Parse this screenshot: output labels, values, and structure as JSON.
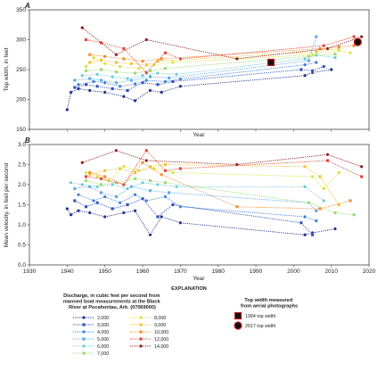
{
  "chart_data": [
    {
      "type": "line",
      "panel": "A",
      "ylabel": "Top width, in feet",
      "xlabel": "Year",
      "xlim": [
        1930,
        2020
      ],
      "ylim": [
        150,
        350
      ],
      "yticks": [
        150,
        200,
        250,
        300,
        350
      ],
      "grid": false,
      "series": [
        {
          "name": "2,000",
          "color": "#1f2f8a",
          "x": [
            1940,
            1941,
            1943,
            1946,
            1950,
            1955,
            1958,
            1962,
            1965,
            1970,
            2003,
            2005,
            2010
          ],
          "y": [
            183,
            212,
            218,
            215,
            212,
            205,
            198,
            215,
            212,
            222,
            240,
            245,
            250
          ]
        },
        {
          "name": "3,000",
          "color": "#2a4fb5",
          "x": [
            1942,
            1945,
            1948,
            1952,
            1956,
            1960,
            1964,
            1968,
            2002,
            2005,
            2008
          ],
          "y": [
            220,
            225,
            222,
            218,
            215,
            228,
            225,
            230,
            250,
            248,
            255
          ]
        },
        {
          "name": "4,000",
          "color": "#3d7bd9",
          "x": [
            1943,
            1947,
            1950,
            1954,
            1958,
            1961,
            1966,
            1970,
            2003,
            2006
          ],
          "y": [
            225,
            230,
            228,
            222,
            226,
            232,
            230,
            234,
            258,
            262
          ]
        },
        {
          "name": "5,000",
          "color": "#5aa8e8",
          "x": [
            1942,
            1946,
            1949,
            1953,
            1957,
            1962,
            1967,
            2004,
            2006
          ],
          "y": [
            232,
            235,
            232,
            228,
            232,
            238,
            236,
            265,
            305
          ]
        },
        {
          "name": "6,000",
          "color": "#6ec9d0",
          "x": [
            1944,
            1948,
            1952,
            1956,
            1960,
            1964,
            1969,
            2003,
            2006,
            2011
          ],
          "y": [
            240,
            242,
            238,
            235,
            240,
            244,
            242,
            268,
            274,
            270
          ]
        },
        {
          "name": "7,000",
          "color": "#9bd873",
          "x": [
            1945,
            1949,
            1953,
            1958,
            1962,
            1966,
            2004,
            2011
          ],
          "y": [
            248,
            250,
            246,
            244,
            248,
            252,
            272,
            276
          ]
        },
        {
          "name": "8,000",
          "color": "#d6e23c",
          "x": [
            1945,
            1947,
            1950,
            1954,
            1959,
            1963,
            1968,
            2005,
            2012,
            2015
          ],
          "y": [
            255,
            270,
            260,
            255,
            252,
            258,
            262,
            275,
            282,
            278
          ]
        },
        {
          "name": "9,000",
          "color": "#f2c12e",
          "x": [
            1946,
            1949,
            1953,
            1957,
            1961,
            1964,
            2006,
            2012
          ],
          "y": [
            262,
            266,
            262,
            260,
            258,
            264,
            280,
            285
          ]
        },
        {
          "name": "10,000",
          "color": "#f28a2a",
          "x": [
            1946,
            1950,
            1955,
            1960,
            1965,
            2007,
            2012,
            2016
          ],
          "y": [
            275,
            272,
            268,
            264,
            268,
            285,
            288,
            290
          ]
        },
        {
          "name": "12,000",
          "color": "#e0453a",
          "x": [
            1945,
            1949,
            1955,
            1961,
            1966,
            1970,
            2008,
            2016
          ],
          "y": [
            300,
            295,
            285,
            245,
            278,
            268,
            290,
            305
          ]
        },
        {
          "name": "14,000",
          "color": "#8b1a1a",
          "x": [
            1944,
            1953,
            1961,
            1985,
            2009,
            2018
          ],
          "y": [
            320,
            275,
            300,
            268,
            285,
            305
          ]
        }
      ],
      "aerial": [
        {
          "name": "1994 top width",
          "x": 1994,
          "y": 262
        },
        {
          "name": "2017 top width",
          "x": 2017,
          "y": 296
        }
      ]
    },
    {
      "type": "line",
      "panel": "B",
      "ylabel": "Mean velocity, in feet per second",
      "xlabel": "Year",
      "xlim": [
        1930,
        2020
      ],
      "ylim": [
        0,
        3.0
      ],
      "yticks": [
        0,
        0.5,
        1.0,
        1.5,
        2.0,
        2.5,
        3.0
      ],
      "xticks": [
        1930,
        1940,
        1950,
        1960,
        1970,
        1980,
        1990,
        2000,
        2010,
        2020
      ],
      "grid": false,
      "series": [
        {
          "name": "2,000",
          "color": "#1f2f8a",
          "x": [
            1940,
            1941,
            1943,
            1946,
            1950,
            1955,
            1958,
            1962,
            1965,
            1970,
            2003,
            2005,
            2011
          ],
          "y": [
            1.4,
            1.25,
            1.35,
            1.3,
            1.2,
            1.3,
            1.35,
            0.75,
            1.2,
            1.05,
            0.75,
            0.8,
            0.9
          ]
        },
        {
          "name": "3,000",
          "color": "#2a4fb5",
          "x": [
            1942,
            1945,
            1948,
            1952,
            1956,
            1960,
            1964,
            1968,
            2002,
            2005
          ],
          "y": [
            1.6,
            1.45,
            1.55,
            1.4,
            1.5,
            1.65,
            1.2,
            1.5,
            1.05,
            0.75
          ]
        },
        {
          "name": "4,000",
          "color": "#3d7bd9",
          "x": [
            1943,
            1947,
            1950,
            1954,
            1958,
            1961,
            1966,
            1970,
            2003,
            2006
          ],
          "y": [
            1.75,
            1.6,
            1.7,
            1.55,
            1.75,
            1.6,
            1.7,
            1.45,
            1.2,
            1.1
          ]
        },
        {
          "name": "5,000",
          "color": "#5aa8e8",
          "x": [
            1942,
            1946,
            1949,
            1953,
            1957,
            1962,
            1967,
            2004,
            2006
          ],
          "y": [
            1.9,
            1.95,
            1.8,
            1.7,
            1.95,
            1.85,
            1.8,
            1.55,
            1.35
          ]
        },
        {
          "name": "6,000",
          "color": "#6ec9d0",
          "x": [
            1941,
            1944,
            1948,
            1952,
            1956,
            1960,
            1964,
            1969,
            2003,
            2008
          ],
          "y": [
            2.05,
            2.0,
            1.95,
            2.0,
            1.9,
            2.05,
            2.0,
            1.95,
            1.95,
            1.6
          ]
        },
        {
          "name": "7,000",
          "color": "#9bd873",
          "x": [
            1945,
            1949,
            1953,
            1958,
            1962,
            1966,
            2004,
            2011,
            2016
          ],
          "y": [
            2.1,
            2.0,
            2.05,
            2.15,
            2.1,
            2.05,
            1.55,
            1.3,
            1.25
          ]
        },
        {
          "name": "8,000",
          "color": "#d6e23c",
          "x": [
            1945,
            1948,
            1951,
            1955,
            1959,
            1963,
            1968,
            2005,
            2008,
            2012
          ],
          "y": [
            2.3,
            2.2,
            2.1,
            2.45,
            2.35,
            2.4,
            2.3,
            2.2,
            1.9,
            2.3
          ]
        },
        {
          "name": "9,000",
          "color": "#f2c12e",
          "x": [
            1946,
            1950,
            1954,
            1958,
            1962,
            1966,
            2003,
            2007,
            2012
          ],
          "y": [
            2.25,
            2.35,
            2.4,
            2.3,
            2.45,
            2.5,
            2.45,
            2.2,
            1.5
          ]
        },
        {
          "name": "10,000",
          "color": "#f28a2a",
          "x": [
            1946,
            1950,
            1955,
            1960,
            1965,
            1985,
            2007,
            2015
          ],
          "y": [
            2.3,
            2.2,
            2.0,
            2.55,
            2.25,
            1.45,
            1.4,
            1.6
          ]
        },
        {
          "name": "12,000",
          "color": "#e0453a",
          "x": [
            1945,
            1949,
            1955,
            1961,
            1966,
            1970,
            2009,
            2018
          ],
          "y": [
            2.2,
            2.15,
            2.0,
            2.85,
            2.35,
            2.4,
            2.6,
            2.2
          ]
        },
        {
          "name": "14,000",
          "color": "#8b1a1a",
          "x": [
            1944,
            1953,
            1961,
            1985,
            2009,
            2018
          ],
          "y": [
            2.55,
            2.85,
            2.6,
            2.5,
            2.75,
            2.45
          ]
        }
      ]
    }
  ],
  "legend": {
    "title": "EXPLANATION",
    "discharge_heading": "Discharge, in cubic feet per second from manned boat measurements at the Black River at Pocahontas, Ark. (07069000)",
    "aerial_heading": "Top width measured from aerial photographs",
    "aerial_items": [
      "1994 top width",
      "2017 top width"
    ]
  }
}
